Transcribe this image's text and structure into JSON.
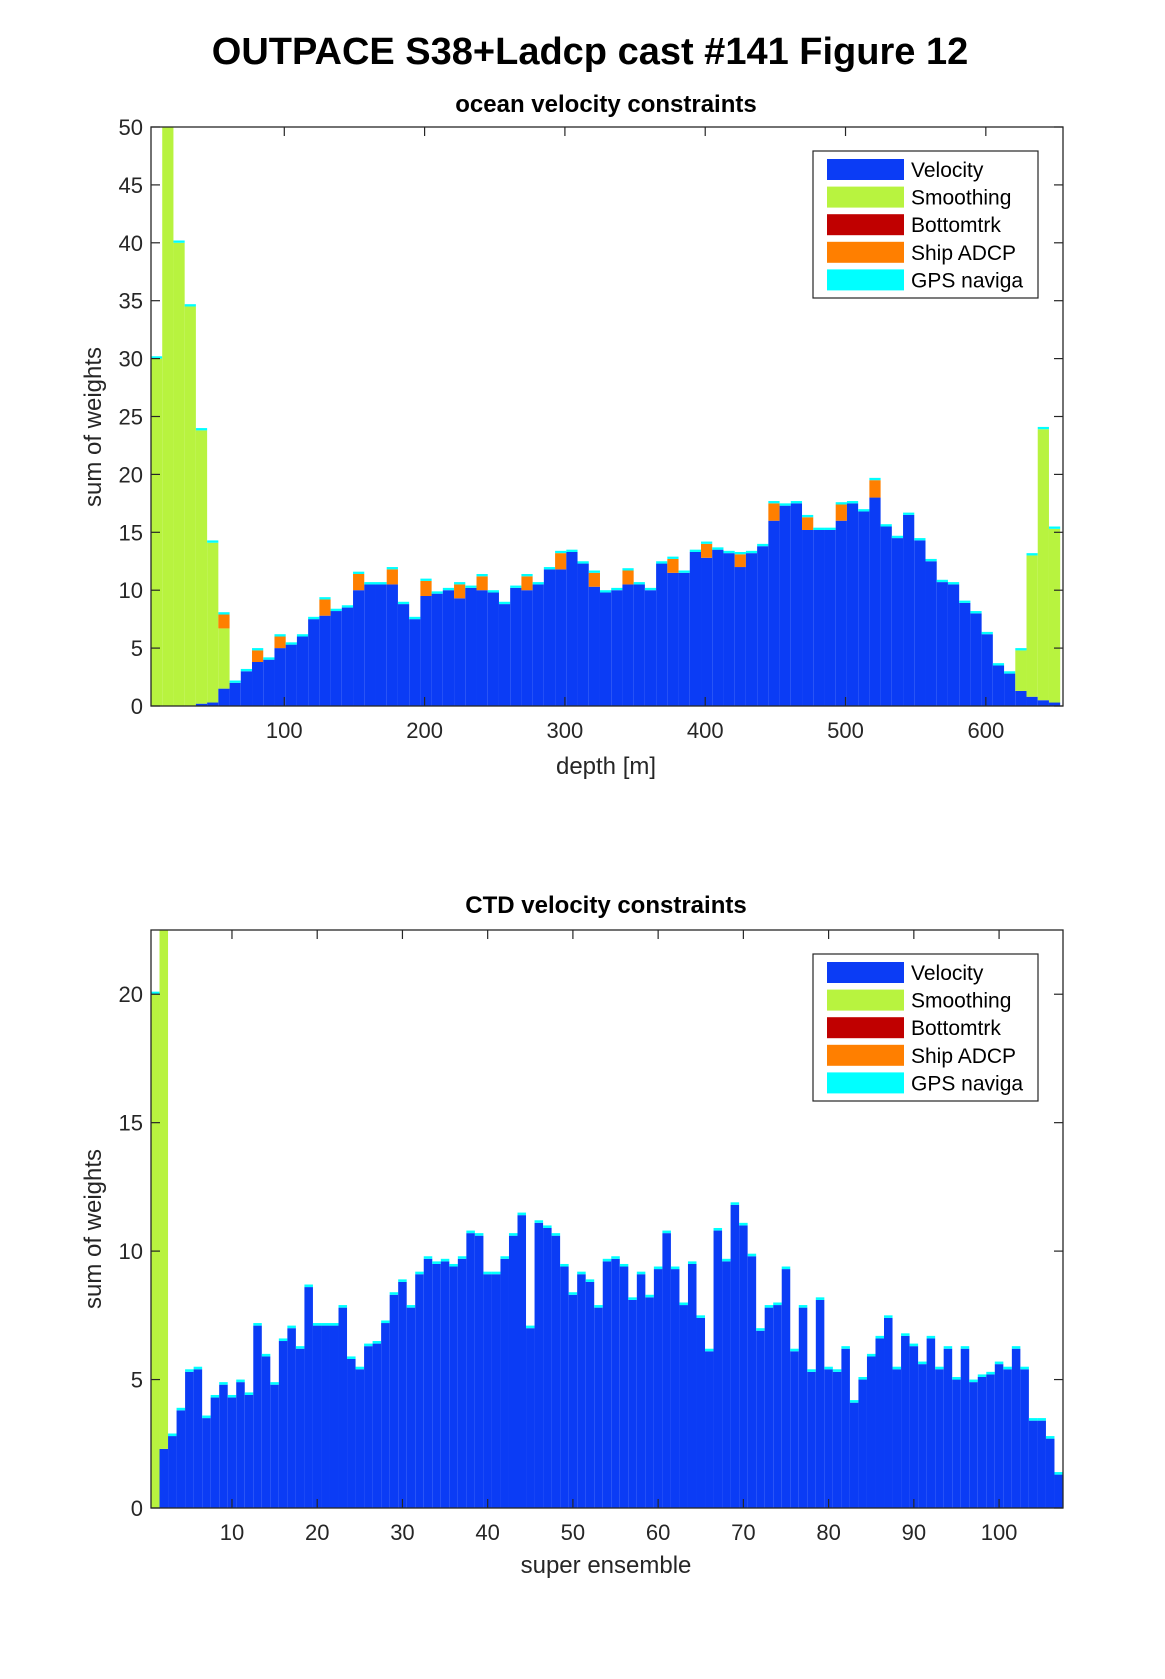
{
  "figure": {
    "title": "OUTPACE S38+Ladcp cast #141  Figure 12"
  },
  "legend": [
    {
      "label": "Velocity",
      "color": "#0b3cf5"
    },
    {
      "label": "Smoothing",
      "color": "#b8f33f"
    },
    {
      "label": "Bottomtrk",
      "color": "#c00000"
    },
    {
      "label": "Ship ADCP",
      "color": "#ff7f00"
    },
    {
      "label": "GPS naviga",
      "color": "#00ffff"
    }
  ],
  "chart_data": [
    {
      "type": "bar",
      "stacked": true,
      "title": "ocean velocity constraints",
      "xlabel": "depth [m]",
      "ylabel": "sum of weights",
      "xlim": [
        5,
        655
      ],
      "ylim": [
        0,
        50
      ],
      "xticks": [
        100,
        200,
        300,
        400,
        500,
        600
      ],
      "yticks": [
        0,
        5,
        10,
        15,
        20,
        25,
        30,
        35,
        40,
        45,
        50
      ],
      "grid": false,
      "legend_position": "top-right",
      "bin_width": 8,
      "x": [
        9,
        17,
        25,
        33,
        41,
        49,
        57,
        65,
        73,
        81,
        89,
        97,
        105,
        113,
        121,
        129,
        137,
        145,
        153,
        161,
        169,
        177,
        185,
        193,
        201,
        209,
        217,
        225,
        233,
        241,
        249,
        257,
        265,
        273,
        281,
        289,
        297,
        305,
        313,
        321,
        329,
        337,
        345,
        353,
        361,
        369,
        377,
        385,
        393,
        401,
        409,
        417,
        425,
        433,
        441,
        449,
        457,
        465,
        473,
        481,
        489,
        497,
        505,
        513,
        521,
        529,
        537,
        545,
        553,
        561,
        569,
        577,
        585,
        593,
        601,
        609,
        617,
        625,
        633,
        641,
        649
      ],
      "series": [
        {
          "name": "Velocity",
          "values": [
            0,
            0,
            0,
            0,
            0.2,
            0.3,
            1.5,
            2,
            3,
            3.8,
            4,
            5,
            5.3,
            6,
            7.5,
            7.8,
            8.2,
            8.5,
            10,
            10.5,
            10.5,
            10.5,
            8.8,
            7.5,
            9.5,
            9.7,
            10,
            9.3,
            10.2,
            10,
            9.8,
            8.8,
            10.2,
            10,
            10.5,
            11.8,
            11.8,
            13.3,
            12.3,
            10.3,
            9.8,
            10,
            10.5,
            10.5,
            10,
            12.3,
            11.5,
            11.5,
            13.3,
            12.8,
            13.5,
            13.2,
            12,
            13.2,
            13.8,
            16,
            17.3,
            17.5,
            15.2,
            15.2,
            15.2,
            16,
            17.5,
            16.8,
            18,
            15.5,
            14.5,
            16.5,
            14.3,
            12.5,
            10.7,
            10.5,
            8.9,
            8,
            6.2,
            3.5,
            2.8,
            1.3,
            0.8,
            0.5,
            0.3
          ]
        },
        {
          "name": "Smoothing",
          "values": [
            30,
            50,
            40,
            34.5,
            23.6,
            13.8,
            5.2,
            0,
            0,
            0,
            0,
            0,
            0,
            0,
            0,
            0,
            0,
            0,
            0,
            0,
            0,
            0,
            0,
            0,
            0,
            0,
            0,
            0,
            0,
            0,
            0,
            0,
            0,
            0,
            0,
            0,
            0,
            0,
            0,
            0,
            0,
            0,
            0,
            0,
            0,
            0,
            0,
            0,
            0,
            0,
            0,
            0,
            0,
            0,
            0,
            0,
            0,
            0,
            0,
            0,
            0,
            0,
            0,
            0,
            0,
            0,
            0,
            0,
            0,
            0,
            0,
            0,
            0,
            0,
            0,
            0,
            0,
            3.5,
            12.2,
            23.4,
            15
          ]
        },
        {
          "name": "Bottomtrk",
          "values": [
            0,
            0,
            0,
            0,
            0,
            0,
            0,
            0,
            0,
            0,
            0,
            0,
            0,
            0,
            0,
            0,
            0,
            0,
            0,
            0,
            0,
            0,
            0,
            0,
            0,
            0,
            0,
            0,
            0,
            0,
            0,
            0,
            0,
            0,
            0,
            0,
            0,
            0,
            0,
            0,
            0,
            0,
            0,
            0,
            0,
            0,
            0,
            0,
            0,
            0,
            0,
            0,
            0,
            0,
            0,
            0,
            0,
            0,
            0,
            0,
            0,
            0,
            0,
            0,
            0,
            0,
            0,
            0,
            0,
            0,
            0,
            0,
            0,
            0,
            0,
            0,
            0,
            0,
            0,
            0,
            0
          ]
        },
        {
          "name": "Ship ADCP",
          "values": [
            0,
            0,
            0,
            0,
            0,
            0,
            1.2,
            0,
            0,
            1,
            0,
            1,
            0,
            0,
            0,
            1.4,
            0,
            0,
            1.4,
            0,
            0,
            1.3,
            0,
            0,
            1.3,
            0,
            0,
            1.2,
            0,
            1.2,
            0,
            0,
            0,
            1.2,
            0,
            0,
            1.4,
            0,
            0,
            1.2,
            0,
            0,
            1.2,
            0,
            0,
            0,
            1.2,
            0,
            0,
            1.2,
            0,
            0,
            1.1,
            0,
            0,
            1.5,
            0,
            0,
            1.1,
            0,
            0,
            1.4,
            0,
            0,
            1.5,
            0,
            0,
            0,
            0,
            0,
            0,
            0,
            0,
            0,
            0,
            0,
            0,
            0,
            0,
            0,
            0
          ]
        },
        {
          "name": "GPS naviga",
          "values": [
            0.2,
            0.2,
            0.2,
            0.2,
            0.2,
            0.2,
            0.2,
            0.2,
            0.2,
            0.2,
            0.2,
            0.2,
            0.2,
            0.2,
            0.2,
            0.2,
            0.2,
            0.2,
            0.2,
            0.2,
            0.2,
            0.2,
            0.2,
            0.2,
            0.2,
            0.2,
            0.2,
            0.2,
            0.2,
            0.2,
            0.2,
            0.2,
            0.2,
            0.2,
            0.2,
            0.2,
            0.2,
            0.2,
            0.2,
            0.2,
            0.2,
            0.2,
            0.2,
            0.2,
            0.2,
            0.2,
            0.2,
            0.2,
            0.2,
            0.2,
            0.2,
            0.2,
            0.2,
            0.2,
            0.2,
            0.2,
            0.2,
            0.2,
            0.2,
            0.2,
            0.2,
            0.2,
            0.2,
            0.2,
            0.2,
            0.2,
            0.2,
            0.2,
            0.2,
            0.2,
            0.2,
            0.2,
            0.2,
            0.2,
            0.2,
            0.2,
            0.2,
            0.2,
            0.2,
            0.2,
            0.2
          ]
        }
      ]
    },
    {
      "type": "bar",
      "stacked": true,
      "title": "CTD velocity constraints",
      "xlabel": "super ensemble",
      "ylabel": "sum of weights",
      "xlim": [
        0.5,
        107.5
      ],
      "ylim": [
        0,
        22.5
      ],
      "xticks": [
        10,
        20,
        30,
        40,
        50,
        60,
        70,
        80,
        90,
        100
      ],
      "yticks": [
        0,
        5,
        10,
        15,
        20
      ],
      "grid": false,
      "legend_position": "top-right",
      "bin_width": 1,
      "x": [
        1,
        2,
        3,
        4,
        5,
        6,
        7,
        8,
        9,
        10,
        11,
        12,
        13,
        14,
        15,
        16,
        17,
        18,
        19,
        20,
        21,
        22,
        23,
        24,
        25,
        26,
        27,
        28,
        29,
        30,
        31,
        32,
        33,
        34,
        35,
        36,
        37,
        38,
        39,
        40,
        41,
        42,
        43,
        44,
        45,
        46,
        47,
        48,
        49,
        50,
        51,
        52,
        53,
        54,
        55,
        56,
        57,
        58,
        59,
        60,
        61,
        62,
        63,
        64,
        65,
        66,
        67,
        68,
        69,
        70,
        71,
        72,
        73,
        74,
        75,
        76,
        77,
        78,
        79,
        80,
        81,
        82,
        83,
        84,
        85,
        86,
        87,
        88,
        89,
        90,
        91,
        92,
        93,
        94,
        95,
        96,
        97,
        98,
        99,
        100,
        101,
        102,
        103,
        104,
        105,
        106,
        107
      ],
      "series": [
        {
          "name": "Velocity",
          "values": [
            0,
            2.3,
            2.8,
            3.8,
            5.3,
            5.4,
            3.5,
            4.3,
            4.8,
            4.3,
            4.9,
            4.4,
            7.1,
            5.9,
            4.8,
            6.5,
            7.0,
            6.2,
            8.6,
            7.1,
            7.1,
            7.1,
            7.8,
            5.8,
            5.4,
            6.3,
            6.4,
            7.2,
            8.3,
            8.8,
            7.8,
            9.1,
            9.7,
            9.5,
            9.6,
            9.4,
            9.7,
            10.7,
            10.6,
            9.1,
            9.1,
            9.7,
            10.6,
            11.4,
            7.0,
            11.1,
            10.9,
            10.6,
            9.4,
            8.3,
            9.1,
            8.8,
            7.8,
            9.6,
            9.7,
            9.4,
            8.1,
            9.1,
            8.2,
            9.3,
            10.7,
            9.3,
            7.9,
            9.5,
            7.4,
            6.1,
            10.8,
            9.6,
            11.8,
            11.0,
            9.8,
            6.9,
            7.8,
            7.9,
            9.3,
            6.1,
            7.8,
            5.3,
            8.1,
            5.4,
            5.3,
            6.2,
            4.1,
            5.0,
            5.9,
            6.6,
            7.4,
            5.4,
            6.7,
            6.3,
            5.6,
            6.6,
            5.4,
            6.2,
            5.0,
            6.2,
            4.9,
            5.1,
            5.2,
            5.6,
            5.4,
            6.2,
            5.4,
            3.4,
            3.4,
            2.7,
            1.3
          ]
        },
        {
          "name": "Smoothing",
          "values": [
            20,
            22.5,
            0,
            0,
            0,
            0,
            0,
            0,
            0,
            0,
            0,
            0,
            0,
            0,
            0,
            0,
            0,
            0,
            0,
            0,
            0,
            0,
            0,
            0,
            0,
            0,
            0,
            0,
            0,
            0,
            0,
            0,
            0,
            0,
            0,
            0,
            0,
            0,
            0,
            0,
            0,
            0,
            0,
            0,
            0,
            0,
            0,
            0,
            0,
            0,
            0,
            0,
            0,
            0,
            0,
            0,
            0,
            0,
            0,
            0,
            0,
            0,
            0,
            0,
            0,
            0,
            0,
            0,
            0,
            0,
            0,
            0,
            0,
            0,
            0,
            0,
            0,
            0,
            0,
            0,
            0,
            0,
            0,
            0,
            0,
            0,
            0,
            0,
            0,
            0,
            0,
            0,
            0,
            0,
            0,
            0,
            0,
            0,
            0,
            0,
            0,
            0,
            0,
            0,
            0,
            0,
            0
          ]
        },
        {
          "name": "Bottomtrk",
          "values": [
            0,
            0,
            0,
            0,
            0,
            0,
            0,
            0,
            0,
            0,
            0,
            0,
            0,
            0,
            0,
            0,
            0,
            0,
            0,
            0,
            0,
            0,
            0,
            0,
            0,
            0,
            0,
            0,
            0,
            0,
            0,
            0,
            0,
            0,
            0,
            0,
            0,
            0,
            0,
            0,
            0,
            0,
            0,
            0,
            0,
            0,
            0,
            0,
            0,
            0,
            0,
            0,
            0,
            0,
            0,
            0,
            0,
            0,
            0,
            0,
            0,
            0,
            0,
            0,
            0,
            0,
            0,
            0,
            0,
            0,
            0,
            0,
            0,
            0,
            0,
            0,
            0,
            0,
            0,
            0,
            0,
            0,
            0,
            0,
            0,
            0,
            0,
            0,
            0,
            0,
            0,
            0,
            0,
            0,
            0,
            0,
            0,
            0,
            0,
            0,
            0,
            0,
            0,
            0,
            0,
            0,
            0
          ]
        },
        {
          "name": "Ship ADCP",
          "values": [
            0,
            0,
            0,
            0,
            0,
            0,
            0,
            0,
            0,
            0,
            0,
            0,
            0,
            0,
            0,
            0,
            0,
            0,
            0,
            0,
            0,
            0,
            0,
            0,
            0,
            0,
            0,
            0,
            0,
            0,
            0,
            0,
            0,
            0,
            0,
            0,
            0,
            0,
            0,
            0,
            0,
            0,
            0,
            0,
            0,
            0,
            0,
            0,
            0,
            0,
            0,
            0,
            0,
            0,
            0,
            0,
            0,
            0,
            0,
            0,
            0,
            0,
            0,
            0,
            0,
            0,
            0,
            0,
            0,
            0,
            0,
            0,
            0,
            0,
            0,
            0,
            0,
            0,
            0,
            0,
            0,
            0,
            0,
            0,
            0,
            0,
            0,
            0,
            0,
            0,
            0,
            0,
            0,
            0,
            0,
            0,
            0,
            0,
            0,
            0,
            0,
            0,
            0,
            0,
            0,
            0,
            0
          ]
        },
        {
          "name": "GPS naviga",
          "values": [
            0.1,
            0.1,
            0.1,
            0.1,
            0.1,
            0.1,
            0.1,
            0.1,
            0.1,
            0.1,
            0.1,
            0.1,
            0.1,
            0.1,
            0.1,
            0.1,
            0.1,
            0.1,
            0.1,
            0.1,
            0.1,
            0.1,
            0.1,
            0.1,
            0.1,
            0.1,
            0.1,
            0.1,
            0.1,
            0.1,
            0.1,
            0.1,
            0.1,
            0.1,
            0.1,
            0.1,
            0.1,
            0.1,
            0.1,
            0.1,
            0.1,
            0.1,
            0.1,
            0.1,
            0.1,
            0.1,
            0.1,
            0.1,
            0.1,
            0.1,
            0.1,
            0.1,
            0.1,
            0.1,
            0.1,
            0.1,
            0.1,
            0.1,
            0.1,
            0.1,
            0.1,
            0.1,
            0.1,
            0.1,
            0.1,
            0.1,
            0.1,
            0.1,
            0.1,
            0.1,
            0.1,
            0.1,
            0.1,
            0.1,
            0.1,
            0.1,
            0.1,
            0.1,
            0.1,
            0.1,
            0.1,
            0.1,
            0.1,
            0.1,
            0.1,
            0.1,
            0.1,
            0.1,
            0.1,
            0.1,
            0.1,
            0.1,
            0.1,
            0.1,
            0.1,
            0.1,
            0.1,
            0.1,
            0.1,
            0.1,
            0.1,
            0.1,
            0.1,
            0.1,
            0.1,
            0.1,
            0.1
          ]
        }
      ]
    }
  ]
}
